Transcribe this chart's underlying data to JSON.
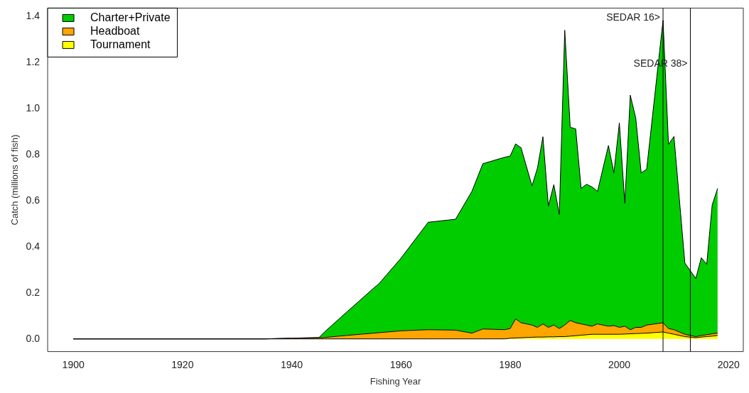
{
  "chart_data": {
    "type": "area",
    "stacked": true,
    "xlabel": "Fishing Year",
    "ylabel": "Catch (millions of fish)",
    "x": [
      1900,
      1935,
      1940,
      1945,
      1946,
      1950,
      1955,
      1956,
      1960,
      1965,
      1970,
      1973,
      1975,
      1979,
      1980,
      1981,
      1982,
      1984,
      1985,
      1986,
      1987,
      1988,
      1989,
      1990,
      1991,
      1992,
      1993,
      1994,
      1995,
      1996,
      1998,
      1999,
      2000,
      2001,
      2002,
      2003,
      2004,
      2005,
      2008,
      2009,
      2010,
      2012,
      2014,
      2015,
      2016,
      2017,
      2018
    ],
    "series": [
      {
        "name": "Tournament",
        "color": "#ffff00",
        "values": [
          0,
          0,
          0,
          0,
          0,
          0,
          0,
          0,
          0,
          0,
          0,
          0,
          0,
          0,
          0.003,
          0.004,
          0.005,
          0.007,
          0.008,
          0.008,
          0.009,
          0.009,
          0.01,
          0.01,
          0.012,
          0.014,
          0.016,
          0.018,
          0.02,
          0.02,
          0.02,
          0.02,
          0.02,
          0.021,
          0.022,
          0.023,
          0.024,
          0.025,
          0.03,
          0.025,
          0.02,
          0.01,
          0.005,
          0.008,
          0.01,
          0.012,
          0.015
        ]
      },
      {
        "name": "Headboat",
        "color": "#ffa500",
        "values": [
          0,
          0,
          0.003,
          0.005,
          0.006,
          0.015,
          0.025,
          0.027,
          0.035,
          0.04,
          0.038,
          0.025,
          0.043,
          0.04,
          0.042,
          0.083,
          0.065,
          0.053,
          0.042,
          0.057,
          0.041,
          0.051,
          0.035,
          0.05,
          0.068,
          0.056,
          0.049,
          0.042,
          0.035,
          0.045,
          0.035,
          0.038,
          0.03,
          0.034,
          0.018,
          0.027,
          0.026,
          0.035,
          0.04,
          0.02,
          0.02,
          0.01,
          0.005,
          0.007,
          0.008,
          0.01,
          0.01
        ]
      },
      {
        "name": "Charter+Private",
        "color": "#00cc00",
        "values": [
          0,
          0,
          0,
          0.001,
          0.024,
          0.1,
          0.195,
          0.213,
          0.315,
          0.466,
          0.481,
          0.615,
          0.717,
          0.748,
          0.748,
          0.759,
          0.759,
          0.604,
          0.691,
          0.812,
          0.526,
          0.609,
          0.495,
          1.279,
          0.838,
          0.841,
          0.588,
          0.611,
          0.604,
          0.575,
          0.784,
          0.662,
          0.887,
          0.533,
          1.017,
          0.908,
          0.67,
          0.676,
          1.312,
          0.799,
          0.838,
          0.309,
          0.252,
          0.337,
          0.306,
          0.559,
          0.628
        ]
      }
    ],
    "xlim": [
      1895.3,
      2022.7
    ],
    "xticks": [
      1900,
      1920,
      1940,
      1960,
      1980,
      2000,
      2020
    ],
    "ylim": [
      -0.055,
      1.435
    ],
    "yticks": [
      {
        "value": 0,
        "label": "0.0"
      },
      {
        "value": 0.2,
        "label": "0.2"
      },
      {
        "value": 0.4,
        "label": "0.4"
      },
      {
        "value": 0.6,
        "label": "0.6"
      },
      {
        "value": 0.8,
        "label": "0.8"
      },
      {
        "value": 1,
        "label": "1.0"
      },
      {
        "value": 1.2,
        "label": "1.2"
      },
      {
        "value": 1.4,
        "label": "1.4"
      }
    ],
    "ref_lines": [
      {
        "axis": "x",
        "value": 2008,
        "label": "SEDAR 16>",
        "color": "#000000"
      },
      {
        "axis": "x",
        "value": 2013,
        "label": "SEDAR 38>",
        "color": "#000000"
      }
    ],
    "legend": "top left",
    "grid": false
  }
}
